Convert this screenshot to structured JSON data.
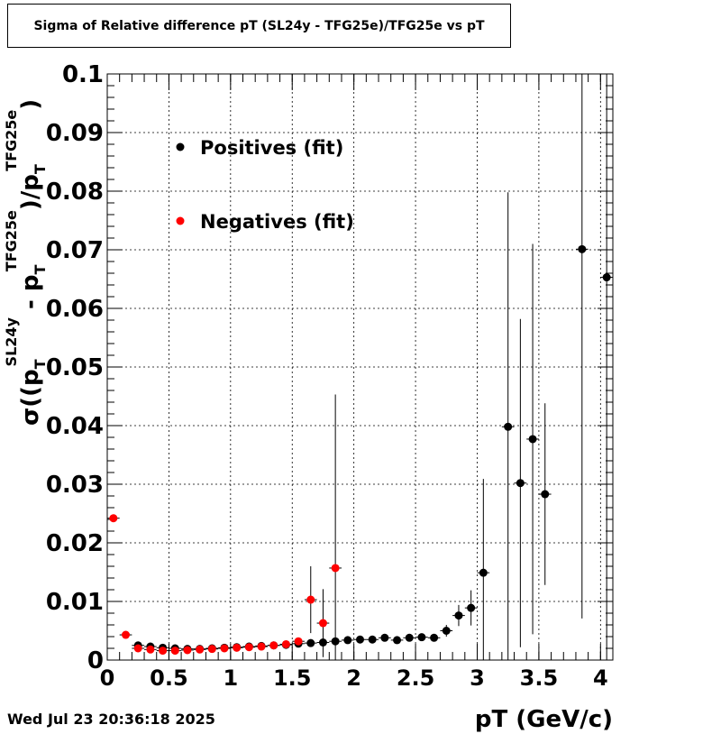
{
  "title": "Sigma of Relative difference pT (SL24y - TFG25e)/TFG25e vs pT",
  "timestamp": "Wed Jul 23 20:36:18 2025",
  "chart_data": {
    "type": "scatter",
    "title": "Sigma of Relative difference pT (SL24y - TFG25e)/TFG25e vs pT",
    "xlabel": "pT (GeV/c)",
    "ylabel": {
      "prefix": "σ((p",
      "sub1": "T",
      "sup1": "SL24y",
      "mid": " - p",
      "sub2": "T",
      "sup2": "TFG25e",
      "mid2": ")/p",
      "sub3": "T",
      "sup3": "TFG25e",
      "suffix": ")"
    },
    "xlim": [
      0,
      4.1
    ],
    "ylim": [
      0,
      0.1
    ],
    "grid": true,
    "legend_placement": "top-left",
    "x_ticks": [
      "0",
      "0.5",
      "1",
      "1.5",
      "2",
      "2.5",
      "3",
      "3.5",
      "4"
    ],
    "x_tick_values": [
      0,
      0.5,
      1,
      1.5,
      2,
      2.5,
      3,
      3.5,
      4
    ],
    "y_ticks": [
      "0",
      "0.01",
      "0.02",
      "0.03",
      "0.04",
      "0.05",
      "0.06",
      "0.07",
      "0.08",
      "0.09",
      "0.1"
    ],
    "y_tick_values": [
      0,
      0.01,
      0.02,
      0.03,
      0.04,
      0.05,
      0.06,
      0.07,
      0.08,
      0.09,
      0.1
    ],
    "series": [
      {
        "name": "Positives (fit)",
        "color": "#000000",
        "points": [
          {
            "x": 0.25,
            "y": 0.0025,
            "err": 0.0004
          },
          {
            "x": 0.35,
            "y": 0.0023,
            "err": 0.0003
          },
          {
            "x": 0.45,
            "y": 0.0021,
            "err": 0.0003
          },
          {
            "x": 0.55,
            "y": 0.002,
            "err": 0.0003
          },
          {
            "x": 0.65,
            "y": 0.0019,
            "err": 0.0003
          },
          {
            "x": 0.75,
            "y": 0.0019,
            "err": 0.0003
          },
          {
            "x": 0.85,
            "y": 0.002,
            "err": 0.0003
          },
          {
            "x": 0.95,
            "y": 0.0021,
            "err": 0.0003
          },
          {
            "x": 1.05,
            "y": 0.0022,
            "err": 0.0003
          },
          {
            "x": 1.15,
            "y": 0.0023,
            "err": 0.0003
          },
          {
            "x": 1.25,
            "y": 0.0024,
            "err": 0.0003
          },
          {
            "x": 1.35,
            "y": 0.0025,
            "err": 0.0003
          },
          {
            "x": 1.45,
            "y": 0.0026,
            "err": 0.0003
          },
          {
            "x": 1.55,
            "y": 0.0028,
            "err": 0.0003
          },
          {
            "x": 1.65,
            "y": 0.0029,
            "err": 0.0003
          },
          {
            "x": 1.75,
            "y": 0.003,
            "err": 0.0003
          },
          {
            "x": 1.85,
            "y": 0.0032,
            "err": 0.0003
          },
          {
            "x": 1.95,
            "y": 0.0034,
            "err": 0.0003
          },
          {
            "x": 2.05,
            "y": 0.0035,
            "err": 0.0003
          },
          {
            "x": 2.15,
            "y": 0.0035,
            "err": 0.0003
          },
          {
            "x": 2.25,
            "y": 0.0038,
            "err": 0.0003
          },
          {
            "x": 2.35,
            "y": 0.0034,
            "err": 0.0003
          },
          {
            "x": 2.45,
            "y": 0.0038,
            "err": 0.0003
          },
          {
            "x": 2.55,
            "y": 0.0039,
            "err": 0.0003
          },
          {
            "x": 2.65,
            "y": 0.0038,
            "err": 0.0003
          },
          {
            "x": 2.75,
            "y": 0.005,
            "err": 0.001
          },
          {
            "x": 2.85,
            "y": 0.0076,
            "err": 0.0018
          },
          {
            "x": 2.95,
            "y": 0.0089,
            "err": 0.003
          },
          {
            "x": 3.05,
            "y": 0.0149,
            "err": 0.016
          },
          {
            "x": 3.25,
            "y": 0.0398,
            "err": 0.04
          },
          {
            "x": 3.35,
            "y": 0.0302,
            "err": 0.028
          },
          {
            "x": 3.45,
            "y": 0.0377,
            "err": 0.0333
          },
          {
            "x": 3.55,
            "y": 0.0283,
            "err": 0.0155
          },
          {
            "x": 3.85,
            "y": 0.0701,
            "err": 0.063
          },
          {
            "x": 4.05,
            "y": 0.0653,
            "err": 0.0653
          }
        ]
      },
      {
        "name": "Negatives (fit)",
        "color": "#ff0000",
        "points": [
          {
            "x": 0.05,
            "y": 0.0242,
            "err": 0.0005
          },
          {
            "x": 0.15,
            "y": 0.0043,
            "err": 0.0004
          },
          {
            "x": 0.25,
            "y": 0.002,
            "err": 0.0003
          },
          {
            "x": 0.35,
            "y": 0.0018,
            "err": 0.0003
          },
          {
            "x": 0.45,
            "y": 0.0016,
            "err": 0.0003
          },
          {
            "x": 0.55,
            "y": 0.0016,
            "err": 0.0003
          },
          {
            "x": 0.65,
            "y": 0.0017,
            "err": 0.0003
          },
          {
            "x": 0.75,
            "y": 0.0018,
            "err": 0.0003
          },
          {
            "x": 0.85,
            "y": 0.0019,
            "err": 0.0003
          },
          {
            "x": 0.95,
            "y": 0.002,
            "err": 0.0003
          },
          {
            "x": 1.05,
            "y": 0.0021,
            "err": 0.0003
          },
          {
            "x": 1.15,
            "y": 0.0022,
            "err": 0.0003
          },
          {
            "x": 1.25,
            "y": 0.0023,
            "err": 0.0003
          },
          {
            "x": 1.35,
            "y": 0.0025,
            "err": 0.0003
          },
          {
            "x": 1.45,
            "y": 0.0027,
            "err": 0.0003
          },
          {
            "x": 1.55,
            "y": 0.0032,
            "err": 0.0004
          },
          {
            "x": 1.65,
            "y": 0.0103,
            "err": 0.0057
          },
          {
            "x": 1.75,
            "y": 0.0063,
            "err": 0.0058
          },
          {
            "x": 1.85,
            "y": 0.0157,
            "err": 0.0296
          }
        ]
      }
    ]
  }
}
